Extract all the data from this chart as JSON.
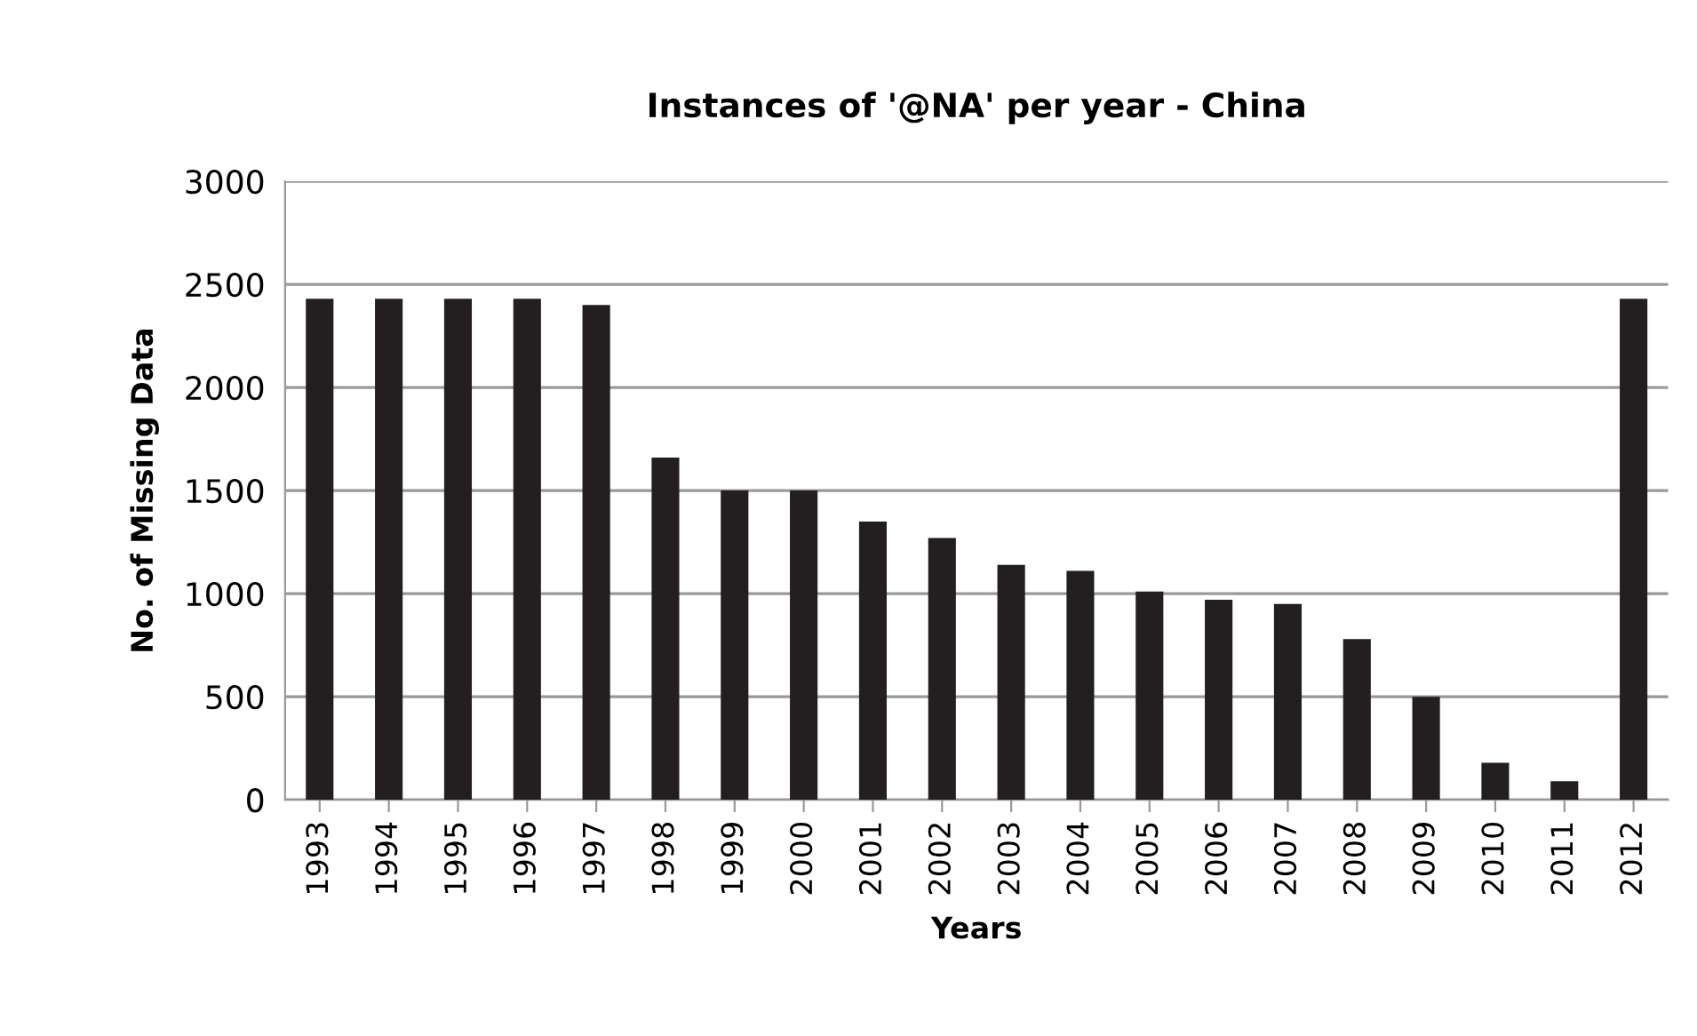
{
  "chart_data": {
    "type": "bar",
    "title": "Instances of '@NA' per year - China",
    "xlabel": "Years",
    "ylabel": "No. of Missing Data",
    "categories": [
      "1993",
      "1994",
      "1995",
      "1996",
      "1997",
      "1998",
      "1999",
      "2000",
      "2001",
      "2002",
      "2003",
      "2004",
      "2005",
      "2006",
      "2007",
      "2008",
      "2009",
      "2010",
      "2011",
      "2012"
    ],
    "values": [
      2430,
      2430,
      2430,
      2430,
      2400,
      1660,
      1500,
      1500,
      1350,
      1270,
      1140,
      1110,
      1010,
      970,
      950,
      780,
      500,
      180,
      90,
      2430
    ],
    "color": "#231f20",
    "ylim": [
      0,
      3000
    ],
    "yticks": [
      0,
      500,
      1000,
      1500,
      2000,
      2500,
      3000
    ],
    "grid": "y",
    "legend": false
  }
}
